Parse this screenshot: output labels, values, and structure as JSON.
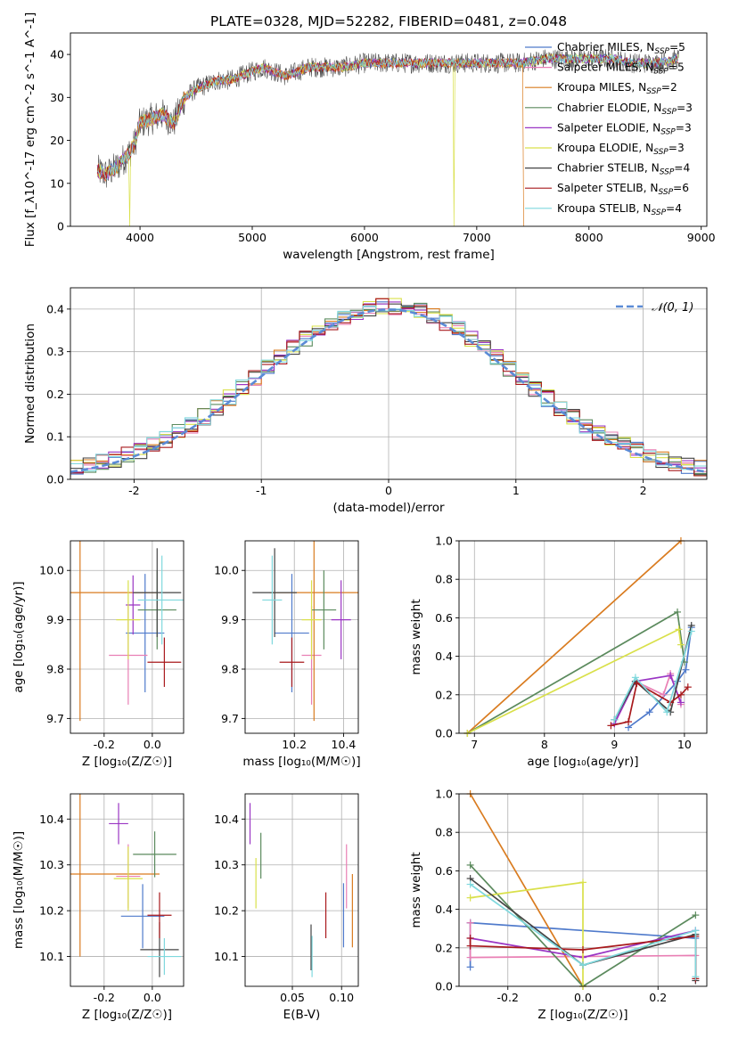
{
  "figure": {
    "title": "PLATE=0328, MJD=52282, FIBERID=0481, z=0.048"
  },
  "series_colors": [
    "#4f7acb",
    "#e97fb4",
    "#d97b1f",
    "#5b8a5d",
    "#9a35c4",
    "#d9e04a",
    "#444444",
    "#a8191c",
    "#7fd8dd"
  ],
  "chart_data": [
    {
      "id": "spectrum",
      "type": "line",
      "xlabel": "wavelength [Angstrom, rest frame]",
      "ylabel": "Flux [f_λ10^-17 erg cm^-2 s^-1 A^-1]",
      "xlim": [
        3380,
        9050
      ],
      "ylim": [
        0,
        45
      ],
      "xticks": [
        4000,
        5000,
        6000,
        7000,
        8000,
        9000
      ],
      "yticks": [
        0,
        10,
        20,
        30,
        40
      ],
      "grid": false,
      "legend_position": "upper-right",
      "legend": [
        {
          "label": "Chabrier MILES, N",
          "sub": "SSP",
          "val": "=5"
        },
        {
          "label": "Salpeter MILES, N",
          "sub": "SSP",
          "val": "=5"
        },
        {
          "label": "Kroupa MILES, N",
          "sub": "SSP",
          "val": "=2"
        },
        {
          "label": "Chabrier ELODIE, N",
          "sub": "SSP",
          "val": "=3"
        },
        {
          "label": "Salpeter ELODIE, N",
          "sub": "SSP",
          "val": "=3"
        },
        {
          "label": "Kroupa ELODIE, N",
          "sub": "SSP",
          "val": "=3"
        },
        {
          "label": "Chabrier STELIB, N",
          "sub": "SSP",
          "val": "=4"
        },
        {
          "label": "Salpeter STELIB, N",
          "sub": "SSP",
          "val": "=6"
        },
        {
          "label": "Kroupa STELIB, N",
          "sub": "SSP",
          "val": "=4"
        }
      ],
      "continuum_x": [
        3620,
        3700,
        3800,
        3900,
        3950,
        4000,
        4100,
        4200,
        4300,
        4400,
        4500,
        4600,
        4700,
        4800,
        4900,
        5000,
        5100,
        5200,
        5300,
        5400,
        5500,
        5600,
        5800,
        6000,
        6200,
        6400,
        6600,
        6800,
        7000,
        7200,
        7400,
        7600,
        7800,
        8000,
        8200,
        8400,
        8600,
        8800
      ],
      "continuum_y": [
        13,
        12,
        14,
        17,
        19,
        24,
        25,
        26,
        24,
        30,
        32,
        33,
        34,
        34,
        35,
        36,
        37,
        36,
        35,
        36,
        37,
        37,
        37,
        38,
        38,
        38,
        38,
        38,
        38,
        38,
        38,
        39,
        39,
        39,
        39,
        38,
        38,
        39
      ],
      "dropouts": [
        {
          "x": 3905,
          "series": 5
        },
        {
          "x": 6800,
          "series": 5
        },
        {
          "x": 7420,
          "series": 2
        }
      ]
    },
    {
      "id": "residuals",
      "type": "line",
      "xlabel": "(data-model)/error",
      "ylabel": "Normed distribution",
      "xlim": [
        -2.5,
        2.5
      ],
      "ylim": [
        0,
        0.45
      ],
      "xticks": [
        -2,
        -1,
        0,
        1,
        2
      ],
      "yticks": [
        0.0,
        0.1,
        0.2,
        0.3,
        0.4
      ],
      "grid": true,
      "legend_position": "upper-right",
      "legend": [
        {
          "label": "𝒩(0, 1)"
        }
      ],
      "gaussian": {
        "mu": 0,
        "sigma": 1,
        "color": "#5b8bd6"
      },
      "bin_width": 0.1
    },
    {
      "id": "z-age",
      "type": "scatter",
      "xlabel": "Z [log₁₀(Z/Z☉)]",
      "ylabel": "age  [log₁₀(age/yr)]",
      "xlim": [
        -0.34,
        0.13
      ],
      "ylim": [
        9.67,
        10.06
      ],
      "xticks": [
        -0.2,
        0.0
      ],
      "yticks": [
        9.7,
        9.8,
        9.9,
        10.0
      ],
      "grid": true,
      "points": [
        {
          "x": -0.03,
          "xerr": 0.08,
          "y": 9.873,
          "yerr": 0.12
        },
        {
          "x": -0.1,
          "xerr": 0.08,
          "y": 9.828,
          "yerr": 0.1
        },
        {
          "x": -0.3,
          "xerr": 0.32,
          "y": 9.955,
          "yerr": 0.26
        },
        {
          "x": 0.02,
          "xerr": 0.08,
          "y": 9.92,
          "yerr": 0.08
        },
        {
          "x": -0.08,
          "xerr": 0.03,
          "y": 9.93,
          "yerr": 0.06
        },
        {
          "x": -0.1,
          "xerr": 0.05,
          "y": 9.9,
          "yerr": 0.08
        },
        {
          "x": 0.02,
          "xerr": 0.1,
          "y": 9.955,
          "yerr": 0.09
        },
        {
          "x": 0.05,
          "xerr": 0.07,
          "y": 9.814,
          "yerr": 0.05
        },
        {
          "x": 0.04,
          "xerr": 0.1,
          "y": 9.94,
          "yerr": 0.09
        }
      ]
    },
    {
      "id": "mass-age",
      "type": "scatter",
      "xlabel": "mass [log₁₀(M/M☉)]",
      "ylabel": "",
      "xlim": [
        10.0,
        10.46
      ],
      "ylim": [
        9.67,
        10.06
      ],
      "xticks": [
        10.2,
        10.4
      ],
      "yticks": [
        9.7,
        9.8,
        9.9,
        10.0
      ],
      "grid": true,
      "points": [
        {
          "x": 10.19,
          "xerr": 0.07,
          "y": 9.873,
          "yerr": 0.12
        },
        {
          "x": 10.27,
          "xerr": 0.04,
          "y": 9.828,
          "yerr": 0.1
        },
        {
          "x": 10.28,
          "xerr": 0.18,
          "y": 9.955,
          "yerr": 0.26
        },
        {
          "x": 10.32,
          "xerr": 0.05,
          "y": 9.92,
          "yerr": 0.08
        },
        {
          "x": 10.39,
          "xerr": 0.04,
          "y": 9.9,
          "yerr": 0.08
        },
        {
          "x": 10.27,
          "xerr": 0.04,
          "y": 9.9,
          "yerr": 0.08
        },
        {
          "x": 10.12,
          "xerr": 0.09,
          "y": 9.955,
          "yerr": 0.09
        },
        {
          "x": 10.19,
          "xerr": 0.05,
          "y": 9.814,
          "yerr": 0.05
        },
        {
          "x": 10.11,
          "xerr": 0.04,
          "y": 9.94,
          "yerr": 0.09
        }
      ]
    },
    {
      "id": "age-weight",
      "type": "line",
      "xlabel": "age  [log₁₀(age/yr)]",
      "ylabel": "mass weight",
      "xlim": [
        6.78,
        10.32
      ],
      "ylim": [
        0,
        1.0
      ],
      "xticks": [
        7,
        8,
        9,
        10
      ],
      "yticks": [
        0.0,
        0.2,
        0.4,
        0.6,
        0.8,
        1.0
      ],
      "grid": true,
      "lines": [
        [
          [
            9.2,
            0.03
          ],
          [
            9.5,
            0.11
          ],
          [
            9.9,
            0.27
          ],
          [
            10.02,
            0.33
          ],
          [
            10.1,
            0.55
          ]
        ],
        [
          [
            9.0,
            0.05
          ],
          [
            9.3,
            0.27
          ],
          [
            9.7,
            0.2
          ],
          [
            9.8,
            0.31
          ],
          [
            9.95,
            0.15
          ]
        ],
        [
          [
            6.9,
            0.0
          ],
          [
            9.95,
            1.0
          ]
        ],
        [
          [
            6.9,
            0.0
          ],
          [
            9.9,
            0.63
          ],
          [
            10.0,
            0.37
          ]
        ],
        [
          [
            9.0,
            0.05
          ],
          [
            9.3,
            0.27
          ],
          [
            9.8,
            0.3
          ],
          [
            9.95,
            0.16
          ]
        ],
        [
          [
            6.9,
            0.0
          ],
          [
            9.92,
            0.54
          ],
          [
            9.95,
            0.46
          ]
        ],
        [
          [
            9.0,
            0.07
          ],
          [
            9.3,
            0.27
          ],
          [
            9.8,
            0.11
          ],
          [
            10.1,
            0.56
          ]
        ],
        [
          [
            8.95,
            0.04
          ],
          [
            9.2,
            0.06
          ],
          [
            9.32,
            0.26
          ],
          [
            9.8,
            0.16
          ],
          [
            9.95,
            0.2
          ],
          [
            10.05,
            0.24
          ]
        ],
        [
          [
            9.0,
            0.07
          ],
          [
            9.3,
            0.29
          ],
          [
            9.75,
            0.11
          ],
          [
            10.1,
            0.53
          ]
        ]
      ]
    },
    {
      "id": "z-mass",
      "type": "scatter",
      "xlabel": "Z [log₁₀(Z/Z☉)]",
      "ylabel": "mass [log₁₀(M/M☉)]",
      "xlim": [
        -0.34,
        0.13
      ],
      "ylim": [
        10.035,
        10.455
      ],
      "xticks": [
        -0.2,
        0.0
      ],
      "yticks": [
        10.1,
        10.2,
        10.3,
        10.4
      ],
      "grid": true,
      "points": [
        {
          "x": -0.04,
          "xerr": 0.09,
          "y": 10.188,
          "yerr": 0.07
        },
        {
          "x": -0.1,
          "xerr": 0.05,
          "y": 10.275,
          "yerr": 0.07
        },
        {
          "x": -0.3,
          "xerr": 0.33,
          "y": 10.28,
          "yerr": 0.18
        },
        {
          "x": 0.01,
          "xerr": 0.09,
          "y": 10.323,
          "yerr": 0.05
        },
        {
          "x": -0.14,
          "xerr": 0.04,
          "y": 10.39,
          "yerr": 0.045
        },
        {
          "x": -0.1,
          "xerr": 0.06,
          "y": 10.27,
          "yerr": 0.07
        },
        {
          "x": 0.03,
          "xerr": 0.08,
          "y": 10.115,
          "yerr": 0.06
        },
        {
          "x": 0.03,
          "xerr": 0.05,
          "y": 10.19,
          "yerr": 0.05
        },
        {
          "x": 0.05,
          "xerr": 0.07,
          "y": 10.1,
          "yerr": 0.04
        }
      ]
    },
    {
      "id": "ebv-mass",
      "type": "scatter",
      "xlabel": "E(B-V)",
      "ylabel": "",
      "xlim": [
        0.002,
        0.117
      ],
      "ylim": [
        10.035,
        10.455
      ],
      "xticks": [
        0.05,
        0.1
      ],
      "yticks": [
        10.1,
        10.2,
        10.3,
        10.4
      ],
      "grid": true,
      "points": [
        {
          "x": 0.102,
          "y": 10.19,
          "yerr": 0.07
        },
        {
          "x": 0.105,
          "y": 10.275,
          "yerr": 0.07
        },
        {
          "x": 0.111,
          "y": 10.2,
          "yerr": 0.08
        },
        {
          "x": 0.018,
          "y": 10.32,
          "yerr": 0.05
        },
        {
          "x": 0.007,
          "y": 10.39,
          "yerr": 0.045
        },
        {
          "x": 0.013,
          "y": 10.26,
          "yerr": 0.055
        },
        {
          "x": 0.069,
          "y": 10.12,
          "yerr": 0.05
        },
        {
          "x": 0.084,
          "y": 10.19,
          "yerr": 0.05
        },
        {
          "x": 0.07,
          "y": 10.1,
          "yerr": 0.045
        }
      ]
    },
    {
      "id": "z-weight",
      "type": "line",
      "xlabel": "Z [log₁₀(Z/Z☉)]",
      "ylabel": "mass weight",
      "xlim": [
        -0.33,
        0.33
      ],
      "ylim": [
        0,
        1.0
      ],
      "xticks": [
        -0.2,
        0.0,
        0.2
      ],
      "yticks": [
        0.0,
        0.2,
        0.4,
        0.6,
        0.8,
        1.0
      ],
      "grid": true,
      "lines": [
        [
          [
            -0.3,
            0.33
          ],
          [
            -0.3,
            0.1
          ],
          [
            -0.3,
            0.33
          ],
          [
            0.3,
            0.25
          ]
        ],
        [
          [
            -0.3,
            0.33
          ],
          [
            -0.3,
            0.15
          ],
          [
            0.3,
            0.16
          ],
          [
            0.3,
            0.03
          ]
        ],
        [
          [
            -0.3,
            1.0
          ],
          [
            0.0,
            0.0
          ]
        ],
        [
          [
            -0.3,
            0.63
          ],
          [
            0.0,
            0.0
          ],
          [
            0.3,
            0.37
          ]
        ],
        [
          [
            -0.3,
            0.25
          ],
          [
            0.0,
            0.15
          ],
          [
            0.3,
            0.29
          ]
        ],
        [
          [
            -0.3,
            0.46
          ],
          [
            0.0,
            0.54
          ],
          [
            0.0,
            0.0
          ]
        ],
        [
          [
            -0.3,
            0.56
          ],
          [
            0.0,
            0.11
          ],
          [
            0.3,
            0.27
          ],
          [
            0.3,
            0.03
          ]
        ],
        [
          [
            -0.3,
            0.25
          ],
          [
            -0.3,
            0.21
          ],
          [
            0.0,
            0.19
          ],
          [
            0.3,
            0.26
          ],
          [
            0.3,
            0.04
          ]
        ],
        [
          [
            -0.3,
            0.53
          ],
          [
            0.0,
            0.11
          ],
          [
            0.3,
            0.29
          ],
          [
            0.3,
            0.05
          ]
        ]
      ]
    }
  ]
}
